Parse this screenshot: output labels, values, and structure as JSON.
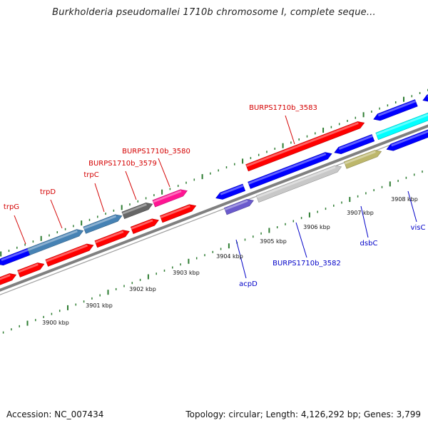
{
  "map": {
    "title": "Burkholderia pseudomallei 1710b chromosome I, complete seque...",
    "accession": "Accession: NC_007434",
    "summary": "Topology: circular; Length: 4,126,292 bp; Genes: 3,799"
  },
  "scale_ticks": [
    {
      "label": "3900 kbp",
      "pos": 3900
    },
    {
      "label": "3901 kbp",
      "pos": 3901
    },
    {
      "label": "3902 kbp",
      "pos": 3902
    },
    {
      "label": "3903 kbp",
      "pos": 3903
    },
    {
      "label": "3904 kbp",
      "pos": 3904
    },
    {
      "label": "3905 kbp",
      "pos": 3905
    },
    {
      "label": "3906 kbp",
      "pos": 3906
    },
    {
      "label": "3907 kbp",
      "pos": 3907
    },
    {
      "label": "3908 kbp",
      "pos": 3908
    }
  ],
  "upper_labels": [
    {
      "name": "trpG",
      "color": "#d40000"
    },
    {
      "name": "trpD",
      "color": "#d40000"
    },
    {
      "name": "trpC",
      "color": "#d40000"
    },
    {
      "name": "BURPS1710b_3579",
      "color": "#d40000"
    },
    {
      "name": "BURPS1710b_3580",
      "color": "#d40000"
    },
    {
      "name": "BURPS1710b_3583",
      "color": "#d40000"
    }
  ],
  "lower_labels": [
    {
      "name": "acpD",
      "color": "#0000c8"
    },
    {
      "name": "BURPS1710b_3582",
      "color": "#0000c8"
    },
    {
      "name": "dsbC",
      "color": "#0000c8"
    },
    {
      "name": "visC",
      "color": "#0000c8"
    }
  ],
  "colors": {
    "forward_red": "#ff0000",
    "reverse_blue": "#0000ff",
    "steel_blue": "#4682b4",
    "gray": "#666666",
    "magenta": "#ff1493",
    "light_gray": "#c8c8c8",
    "olive": "#bdb76b",
    "cyan": "#00ffff",
    "slate": "#6a5acd",
    "backbone": "#808080",
    "tick_green": "#2e7d32"
  }
}
